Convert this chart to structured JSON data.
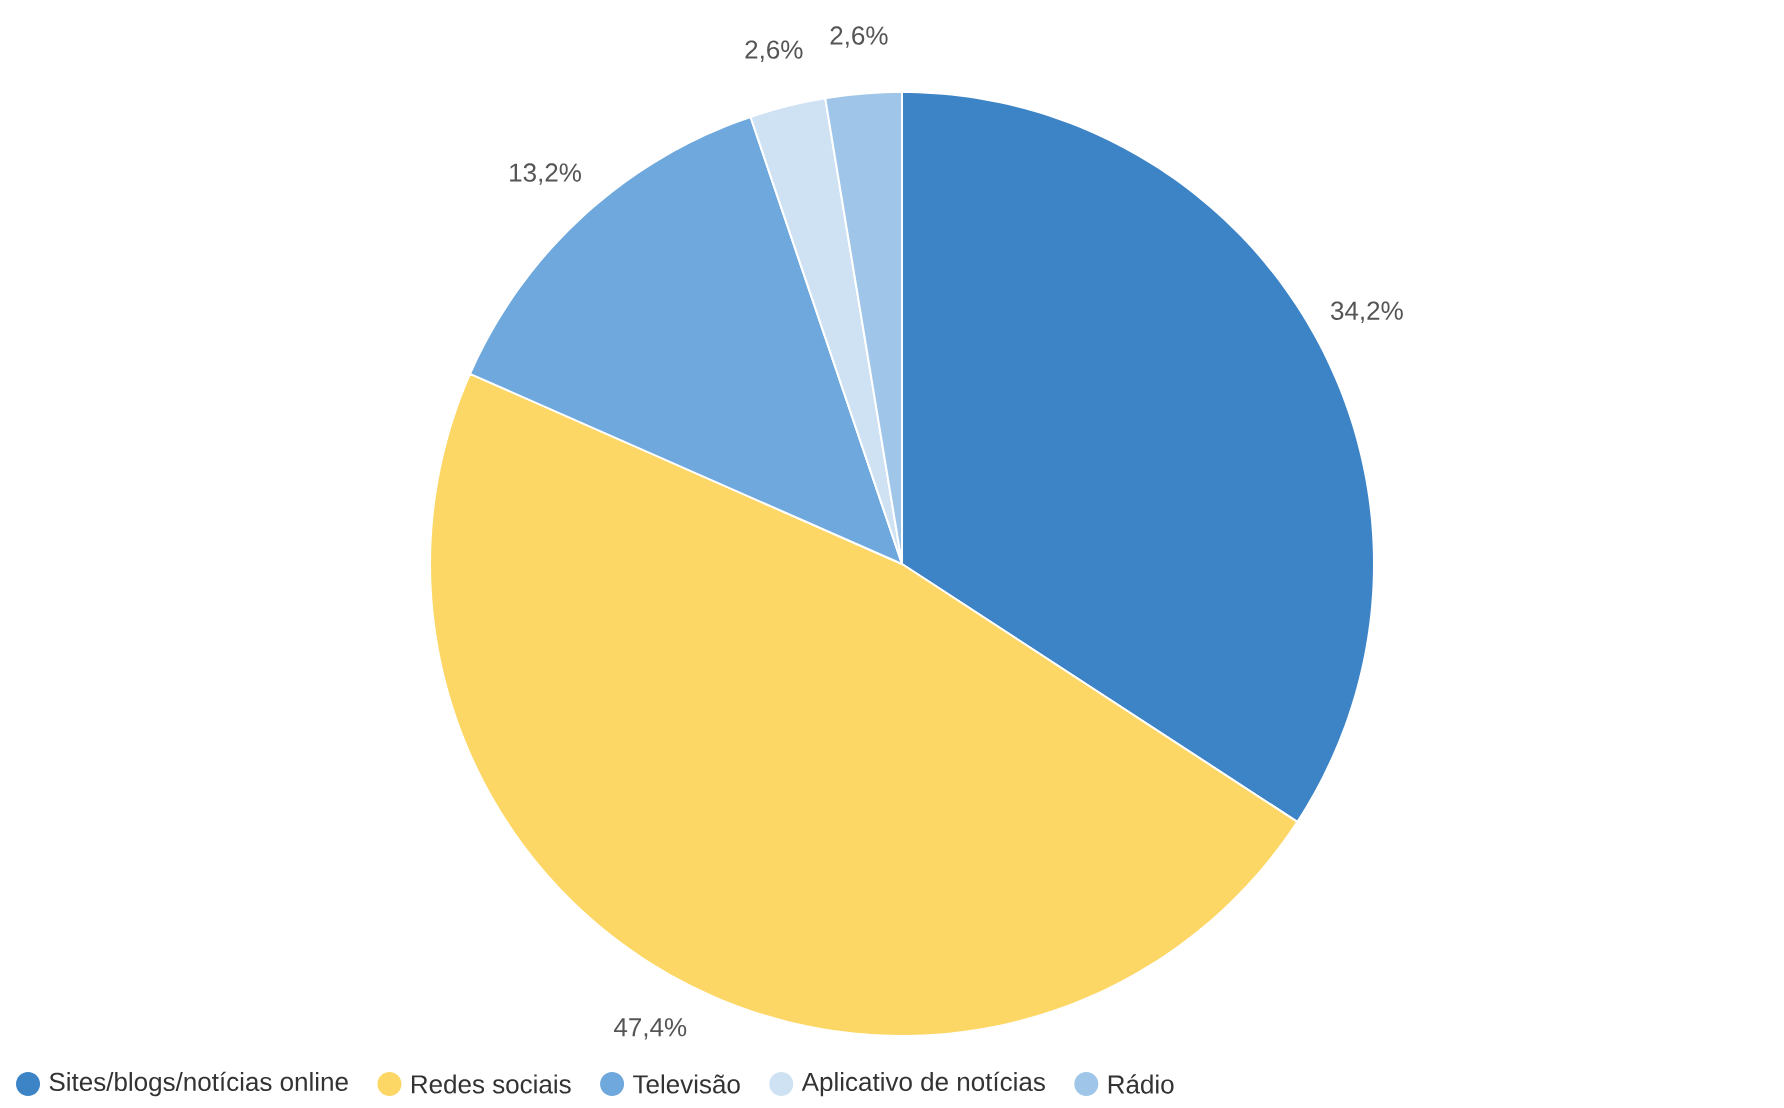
{
  "chart_data": {
    "type": "pie",
    "categories": [
      "Sites/blogs/notícias online",
      "Redes sociais",
      "Televisão",
      "Aplicativo de notícias",
      "Rádio"
    ],
    "values": [
      34.2,
      47.4,
      13.2,
      2.6,
      2.6
    ],
    "value_labels": [
      "34,2%",
      "47,4%",
      "13,2%",
      "2,6%",
      "2,6%"
    ],
    "colors": [
      "#3d84c6",
      "#fdd766",
      "#6ea8dc",
      "#cfe2f3",
      "#9fc5e8"
    ],
    "legend": "bottom"
  }
}
